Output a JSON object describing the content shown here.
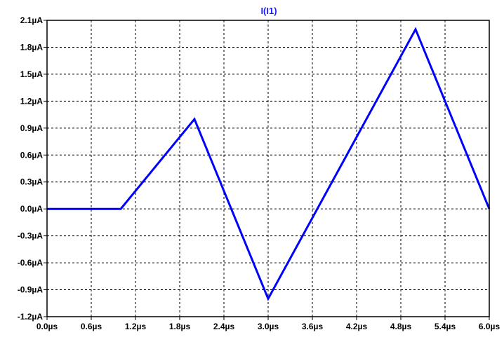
{
  "colors": {
    "background": "#ffffff",
    "axis": "#000000",
    "grid": "#000000",
    "trace": "#0000ff",
    "title": "#1a1aff"
  },
  "chart_data": {
    "type": "line",
    "title": "I(I1)",
    "xlabel": "",
    "ylabel": "",
    "grid": true,
    "grid_style": "dashed",
    "xlim": [
      0.0,
      6.0
    ],
    "ylim": [
      -1.2,
      2.1
    ],
    "x_unit": "µs",
    "y_unit": "µA",
    "x_ticks": [
      "0.0µs",
      "0.6µs",
      "1.2µs",
      "1.8µs",
      "2.4µs",
      "3.0µs",
      "3.6µs",
      "4.2µs",
      "4.8µs",
      "5.4µs",
      "6.0µs"
    ],
    "y_ticks": [
      "2.1µA",
      "1.8µA",
      "1.5µA",
      "1.2µA",
      "0.9µA",
      "0.6µA",
      "0.3µA",
      "0.0µA",
      "-0.3µA",
      "-0.6µA",
      "-0.9µA",
      "-1.2µA"
    ],
    "x_tick_values": [
      0.0,
      0.6,
      1.2,
      1.8,
      2.4,
      3.0,
      3.6,
      4.2,
      4.8,
      5.4,
      6.0
    ],
    "y_tick_values": [
      2.1,
      1.8,
      1.5,
      1.2,
      0.9,
      0.6,
      0.3,
      0.0,
      -0.3,
      -0.6,
      -0.9,
      -1.2
    ],
    "series": [
      {
        "x": [
          0.0,
          1.0,
          2.0,
          3.0,
          5.0,
          6.0
        ],
        "y": [
          0.0,
          0.0,
          1.0,
          -1.0,
          2.0,
          0.0
        ]
      }
    ]
  }
}
